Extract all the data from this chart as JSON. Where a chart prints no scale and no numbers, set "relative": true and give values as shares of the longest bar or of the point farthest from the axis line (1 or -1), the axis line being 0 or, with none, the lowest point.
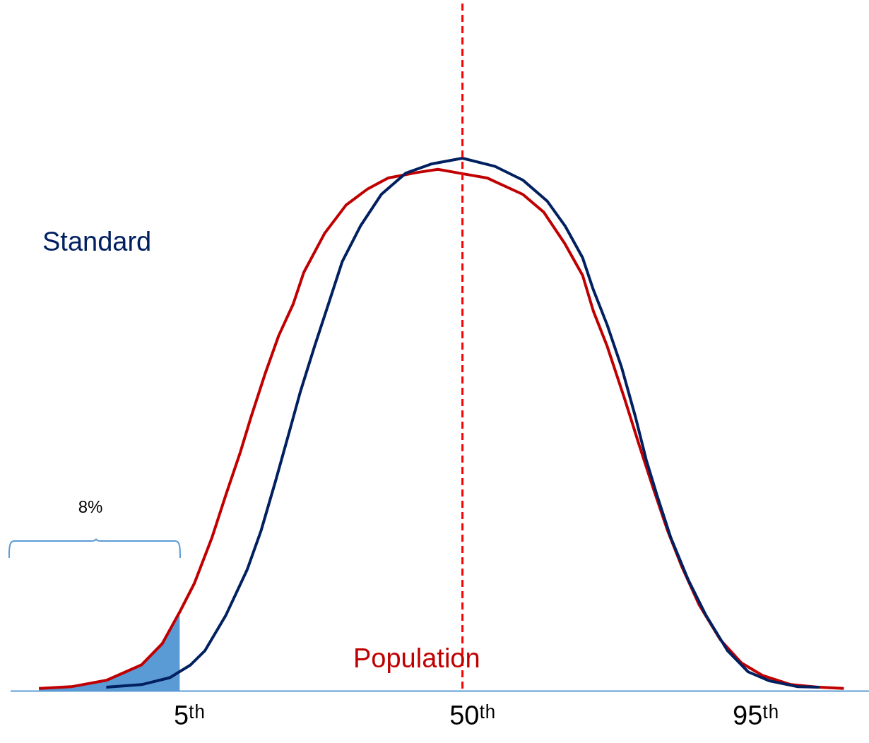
{
  "chart_data": {
    "type": "line",
    "relative": true,
    "grid": false,
    "legend": false,
    "marker": "none",
    "line_style": "solid",
    "xlim": [
      -23.4,
      113.0
    ],
    "xticks": [
      {
        "value": 5,
        "label": "5ᵗʰ"
      },
      {
        "value": 50,
        "label": "50ᵗʰ"
      },
      {
        "value": 95,
        "label": "95ᵗʰ"
      }
    ],
    "series": [
      {
        "name": "Standard",
        "color": "#002060",
        "x": [
          -8.2,
          -2.6,
          1.9,
          5.2,
          7.5,
          10.8,
          14.2,
          16.4,
          18.7,
          20.9,
          22.6,
          24.9,
          27.1,
          29.3,
          32.2,
          35.5,
          39.4,
          43.4,
          48.4,
          53.5,
          58.0,
          61.9,
          64.7,
          67.5,
          69.2,
          71.4,
          73.7,
          75.9,
          77.6,
          79.3,
          81.5,
          84.3,
          87.1,
          90.5,
          93.8,
          97.2,
          101.7,
          105.1
        ],
        "values": [
          0.007,
          0.012,
          0.025,
          0.049,
          0.076,
          0.142,
          0.228,
          0.301,
          0.394,
          0.487,
          0.56,
          0.647,
          0.726,
          0.806,
          0.873,
          0.932,
          0.972,
          0.989,
          1,
          0.985,
          0.959,
          0.919,
          0.873,
          0.813,
          0.753,
          0.687,
          0.607,
          0.514,
          0.434,
          0.368,
          0.288,
          0.208,
          0.142,
          0.076,
          0.036,
          0.019,
          0.008,
          0.007
        ]
      },
      {
        "name": "Population",
        "color": "#c00000",
        "x": [
          -18.9,
          -13.8,
          -8.2,
          -2.6,
          0.7,
          3.5,
          5.8,
          8.6,
          10.8,
          13.1,
          14.8,
          17.0,
          19.2,
          21.5,
          23.2,
          26.5,
          29.9,
          33.3,
          36.6,
          41.1,
          44.5,
          47.9,
          52.3,
          58.0,
          61.3,
          64.7,
          67.5,
          69.2,
          71.4,
          74.2,
          76.5,
          78.7,
          81.0,
          83.2,
          86.0,
          89.4,
          92.7,
          96.1,
          100.6,
          105.1,
          109.0
        ],
        "values": [
          0.005,
          0.008,
          0.02,
          0.049,
          0.089,
          0.149,
          0.202,
          0.288,
          0.368,
          0.448,
          0.514,
          0.594,
          0.667,
          0.726,
          0.786,
          0.859,
          0.912,
          0.942,
          0.963,
          0.973,
          0.979,
          0.972,
          0.963,
          0.932,
          0.899,
          0.839,
          0.78,
          0.713,
          0.647,
          0.547,
          0.461,
          0.381,
          0.301,
          0.235,
          0.162,
          0.096,
          0.053,
          0.029,
          0.012,
          0.007,
          0.005
        ]
      },
      {
        "type": "area",
        "color": "#5b9bd5",
        "x": [
          -18.9,
          -13.8,
          -8.2,
          -2.6,
          0.7,
          3.5
        ],
        "values": [
          0.005,
          0.008,
          0.02,
          0.049,
          0.089,
          0.149
        ]
      }
    ],
    "ref_lines": [
      {
        "axis": "x",
        "value": 48.4,
        "label": null,
        "color": "#ff0000",
        "line_style": "dashed"
      }
    ],
    "annotations": [
      "8%"
    ]
  }
}
